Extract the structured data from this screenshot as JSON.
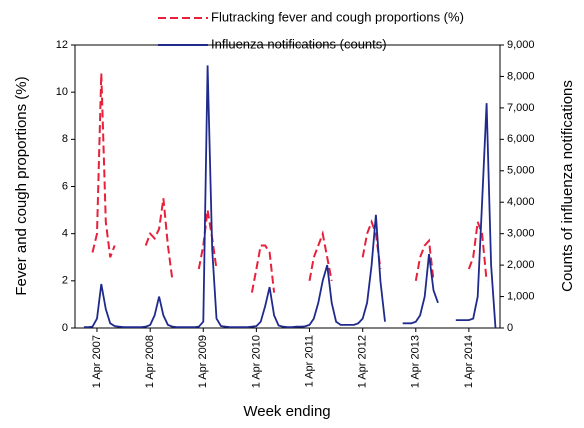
{
  "chart_data": {
    "type": "line",
    "xlabel": "Week ending",
    "ylabel": "Fever and cough proportions (%)",
    "y2label": "Counts of influenza notifications",
    "x": [
      "2007-01-01",
      "2007-02-01",
      "2007-03-01",
      "2007-04-01",
      "2007-05-01",
      "2007-06-01",
      "2007-07-01",
      "2007-08-01",
      "2007-09-01",
      "2007-10-01",
      "2007-11-01",
      "2007-12-01",
      "2008-01-01",
      "2008-02-01",
      "2008-03-01",
      "2008-04-01",
      "2008-05-01",
      "2008-06-01",
      "2008-07-01",
      "2008-08-01",
      "2008-09-01",
      "2008-10-01",
      "2008-11-01",
      "2008-12-01",
      "2009-01-01",
      "2009-02-01",
      "2009-03-01",
      "2009-04-01",
      "2009-05-01",
      "2009-06-01",
      "2009-07-01",
      "2009-08-01",
      "2009-09-01",
      "2009-10-01",
      "2009-11-01",
      "2009-12-01",
      "2010-01-01",
      "2010-02-01",
      "2010-03-01",
      "2010-04-01",
      "2010-05-01",
      "2010-06-01",
      "2010-07-01",
      "2010-08-01",
      "2010-09-01",
      "2010-10-01",
      "2010-11-01",
      "2010-12-01",
      "2011-01-01",
      "2011-02-01",
      "2011-03-01",
      "2011-04-01",
      "2011-05-01",
      "2011-06-01",
      "2011-07-01",
      "2011-08-01",
      "2011-09-01",
      "2011-10-01",
      "2011-11-01",
      "2011-12-01",
      "2012-01-01",
      "2012-02-01",
      "2012-03-01",
      "2012-04-01",
      "2012-05-01",
      "2012-06-01",
      "2012-07-01",
      "2012-08-01",
      "2012-09-01",
      "2012-10-01",
      "2012-11-01",
      "2012-12-01",
      "2013-01-01",
      "2013-02-01",
      "2013-03-01",
      "2013-04-01",
      "2013-05-01",
      "2013-06-01",
      "2013-07-01",
      "2013-08-01",
      "2013-09-01",
      "2013-10-01",
      "2013-11-01",
      "2013-12-01",
      "2014-01-01",
      "2014-02-01",
      "2014-03-01",
      "2014-04-01",
      "2014-05-01",
      "2014-06-01",
      "2014-07-01",
      "2014-08-01",
      "2014-09-01",
      "2014-10-01"
    ],
    "series": [
      {
        "name": "Flutracking fever and cough proportions (%)",
        "color": "#e8203a",
        "line_style": "dashed",
        "values": [
          null,
          null,
          3.2,
          4,
          10.8,
          4.5,
          3,
          3.5,
          null,
          null,
          null,
          null,
          null,
          null,
          3.5,
          4,
          3.8,
          4.2,
          5.5,
          3.5,
          2,
          null,
          null,
          null,
          null,
          null,
          2.5,
          3.5,
          5,
          3.8,
          2.5,
          null,
          null,
          null,
          null,
          null,
          null,
          null,
          1.5,
          2.5,
          3.5,
          3.5,
          3.2,
          1.5,
          null,
          null,
          null,
          null,
          null,
          null,
          null,
          2,
          3,
          3.5,
          4,
          3,
          2,
          null,
          null,
          null,
          null,
          null,
          null,
          3,
          4,
          4.5,
          4,
          2.5,
          null,
          null,
          null,
          null,
          null,
          null,
          null,
          2,
          3,
          3.5,
          3.7,
          2,
          null,
          null,
          null,
          null,
          null,
          null,
          null,
          2.5,
          3,
          4.5,
          4,
          2,
          null,
          null
        ]
      },
      {
        "name": "Influenza notifications (counts)",
        "color": "#1f2a8c",
        "line_style": "solid",
        "axis": "y2",
        "values": [
          30,
          30,
          40,
          300,
          1400,
          600,
          150,
          60,
          40,
          30,
          30,
          30,
          30,
          30,
          40,
          100,
          400,
          1000,
          400,
          100,
          40,
          30,
          30,
          30,
          30,
          30,
          40,
          200,
          8350,
          2500,
          300,
          60,
          40,
          30,
          30,
          30,
          30,
          30,
          40,
          60,
          200,
          700,
          1300,
          400,
          80,
          40,
          30,
          30,
          40,
          40,
          50,
          100,
          300,
          800,
          1500,
          2000,
          800,
          200,
          100,
          100,
          100,
          100,
          150,
          300,
          800,
          2000,
          3600,
          1500,
          200,
          null,
          null,
          null,
          150,
          150,
          150,
          200,
          400,
          1000,
          2350,
          1200,
          800,
          null,
          null,
          null,
          250,
          250,
          250,
          250,
          300,
          1000,
          4000,
          7150,
          2000,
          0
        ]
      }
    ],
    "xlim": [
      "2006-11-01",
      "2014-11-01"
    ],
    "xticks": [
      {
        "value": "2007-04-01",
        "label": "1 Apr 2007"
      },
      {
        "value": "2008-04-01",
        "label": "1 Apr 2008"
      },
      {
        "value": "2009-04-01",
        "label": "1 Apr 2009"
      },
      {
        "value": "2010-04-01",
        "label": "1 Apr 2010"
      },
      {
        "value": "2011-04-01",
        "label": "1 Apr 2011"
      },
      {
        "value": "2012-04-01",
        "label": "1 Apr 2012"
      },
      {
        "value": "2013-04-01",
        "label": "1 Apr 2013"
      },
      {
        "value": "2014-04-01",
        "label": "1 Apr 2014"
      }
    ],
    "ylim": [
      0,
      12
    ],
    "yticks": [
      0,
      2,
      4,
      6,
      8,
      10,
      12
    ],
    "y2lim": [
      0,
      9000
    ],
    "y2ticks": [
      0,
      {
        "value": 1000,
        "label": "1,000"
      },
      {
        "value": 2000,
        "label": "2,000"
      },
      {
        "value": 3000,
        "label": "3,000"
      },
      {
        "value": 4000,
        "label": "4,000"
      },
      {
        "value": 5000,
        "label": "5,000"
      },
      {
        "value": 6000,
        "label": "6,000"
      },
      {
        "value": 7000,
        "label": "7,000"
      },
      {
        "value": 8000,
        "label": "8,000"
      },
      {
        "value": 9000,
        "label": "9,000"
      }
    ],
    "legend": "top"
  }
}
